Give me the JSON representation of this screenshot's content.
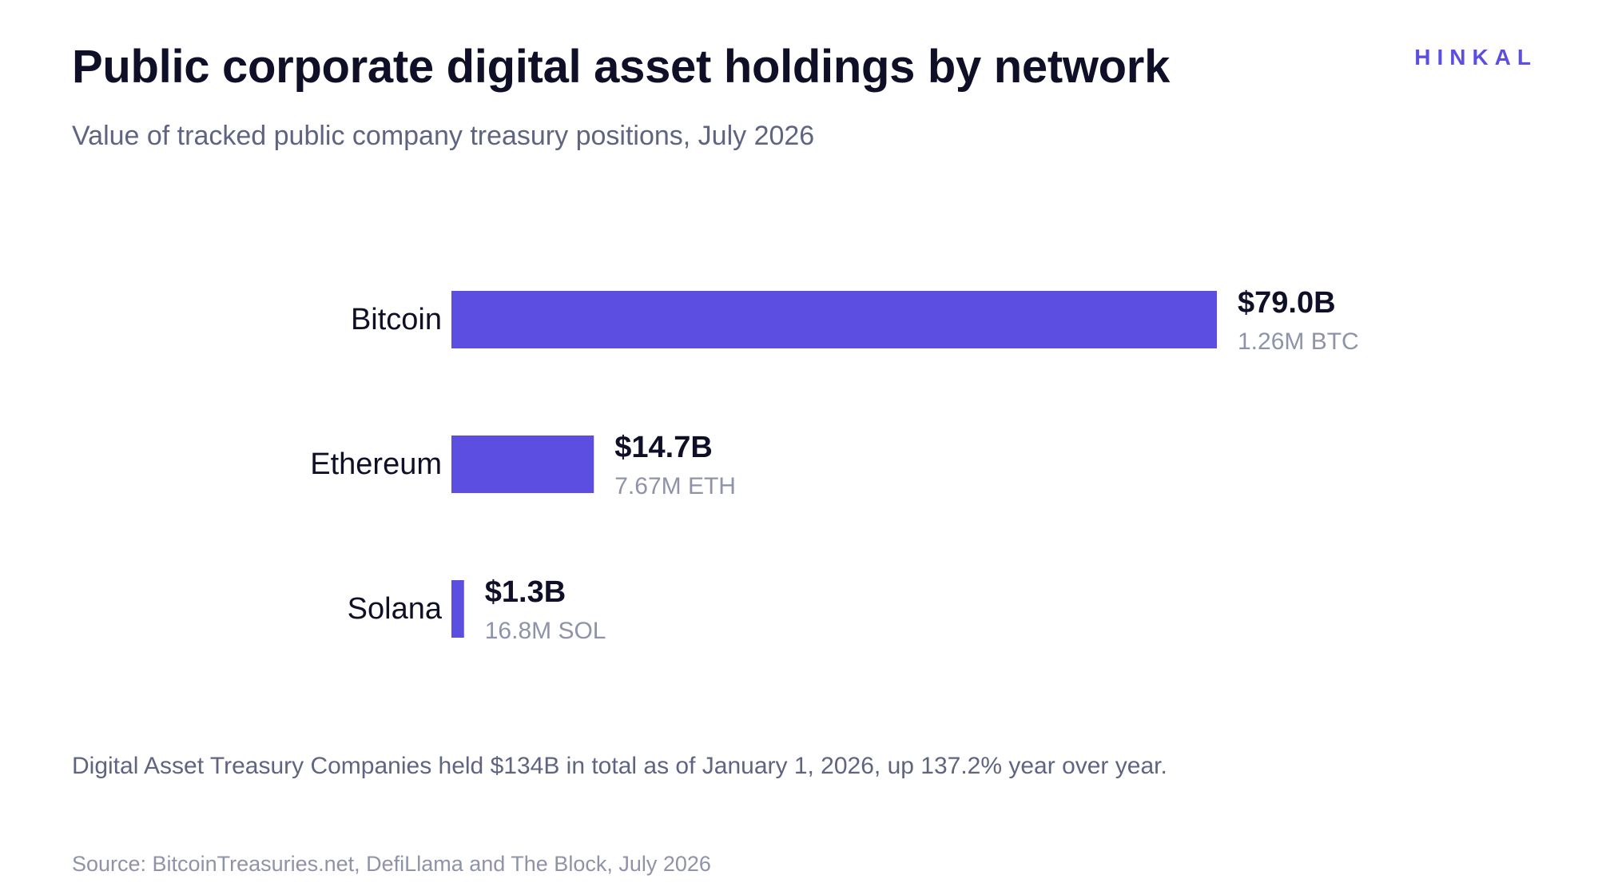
{
  "header": {
    "title": "Public corporate digital asset holdings by network",
    "subtitle": "Value of tracked public company treasury positions, July 2026",
    "brand": "HINKAL"
  },
  "colors": {
    "bar": "#5b4ee0",
    "category_label": "#0f1028",
    "value_label": "#0f1028",
    "secondary_label": "#8f93a8"
  },
  "chart_data": {
    "type": "bar",
    "orientation": "horizontal",
    "categories": [
      "Bitcoin",
      "Ethereum",
      "Solana"
    ],
    "values": [
      79.0,
      14.7,
      1.3
    ],
    "unit": "USD billions",
    "value_labels": [
      "$79.0B",
      "$14.7B",
      "$1.3B"
    ],
    "secondary_labels": [
      "1.26M BTC",
      "7.67M ETH",
      "16.8M SOL"
    ],
    "title": "Public corporate digital asset holdings by network",
    "subtitle": "Value of tracked public company treasury positions, July 2026",
    "xlim": [
      0,
      79.0
    ],
    "grid": false,
    "legend": "none"
  },
  "footer": {
    "note": "Digital Asset Treasury Companies held $134B in total as of January 1, 2026, up 137.2% year over year.",
    "source": "Source: BitcoinTreasuries.net, DefiLlama and The Block, July 2026"
  }
}
